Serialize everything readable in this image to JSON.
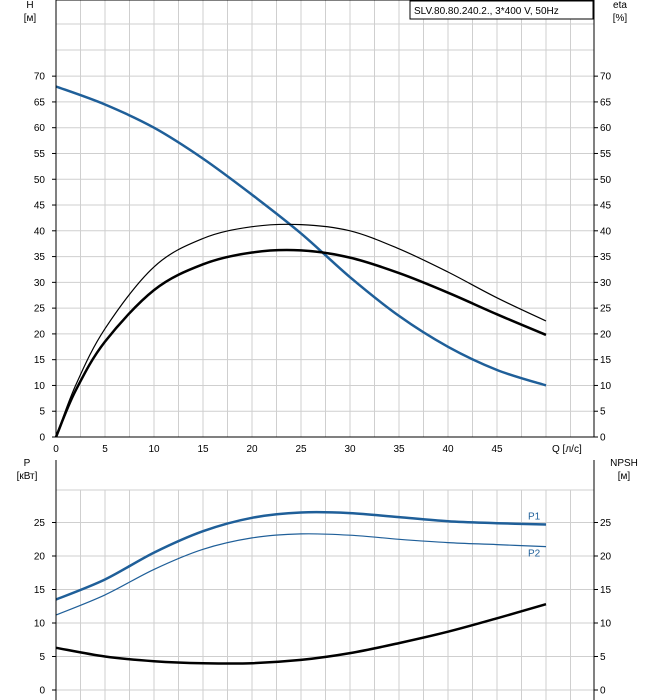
{
  "chart_data": [
    {
      "type": "line",
      "title": "SLV.80.80.240.2., 3*400 V, 50Hz",
      "ylabel_left": "H",
      "ylabel_left_unit": "[м]",
      "ylabel_right": "eta",
      "ylabel_right_unit": "[%]",
      "xlabel": "Q [л/с]",
      "xlim": [
        0,
        50
      ],
      "ylim": [
        0,
        80
      ],
      "x_ticks": [
        0,
        5,
        10,
        15,
        20,
        25,
        30,
        35,
        40,
        45
      ],
      "y_ticks": [
        0,
        5,
        10,
        15,
        20,
        25,
        30,
        35,
        40,
        45,
        50,
        55,
        60,
        65,
        70
      ],
      "grid": true,
      "series": [
        {
          "color": "#1f5f99",
          "x": [
            0,
            5,
            10,
            15,
            20,
            25,
            30,
            35,
            40,
            45,
            50
          ],
          "y": [
            68,
            64.5,
            60,
            54,
            47,
            39.5,
            31,
            23.5,
            17.5,
            13,
            10
          ]
        },
        {
          "color": "#000000",
          "x": [
            0,
            2,
            5,
            10,
            15,
            20,
            25,
            30,
            35,
            40,
            45,
            50
          ],
          "y": [
            0,
            10,
            21,
            33,
            38.5,
            40.8,
            41.2,
            40,
            36.5,
            32,
            27,
            22.5
          ]
        },
        {
          "color": "#000000",
          "x": [
            0,
            2,
            5,
            10,
            15,
            20,
            25,
            30,
            35,
            40,
            45,
            50
          ],
          "y": [
            0,
            9,
            18.5,
            28.5,
            33.5,
            35.8,
            36.2,
            34.8,
            31.8,
            28,
            23.8,
            19.8
          ]
        }
      ]
    },
    {
      "type": "line",
      "ylabel_left": "P",
      "ylabel_left_unit": "[кВт]",
      "ylabel_right": "NPSH",
      "ylabel_right_unit": "[м]",
      "xlim": [
        0,
        50
      ],
      "ylim": [
        0,
        30
      ],
      "y_ticks": [
        0,
        5,
        10,
        15,
        20,
        25
      ],
      "grid": true,
      "series": [
        {
          "name": "P1",
          "color": "#1f5f99",
          "x": [
            0,
            5,
            10,
            15,
            20,
            25,
            30,
            35,
            40,
            45,
            50
          ],
          "y": [
            13.5,
            16.5,
            20.5,
            23.7,
            25.7,
            26.5,
            26.4,
            25.8,
            25.2,
            24.9,
            24.7
          ]
        },
        {
          "name": "P2",
          "color": "#1f5f99",
          "x": [
            0,
            5,
            10,
            15,
            20,
            25,
            30,
            35,
            40,
            45,
            50
          ],
          "y": [
            11.2,
            14.2,
            18,
            21,
            22.7,
            23.3,
            23.1,
            22.5,
            22,
            21.7,
            21.4
          ]
        },
        {
          "color": "#000000",
          "x": [
            0,
            5,
            10,
            15,
            20,
            25,
            30,
            35,
            40,
            45,
            50
          ],
          "y": [
            6.3,
            5.0,
            4.3,
            4.0,
            4.0,
            4.5,
            5.5,
            7.0,
            8.7,
            10.7,
            12.8
          ]
        }
      ]
    }
  ]
}
